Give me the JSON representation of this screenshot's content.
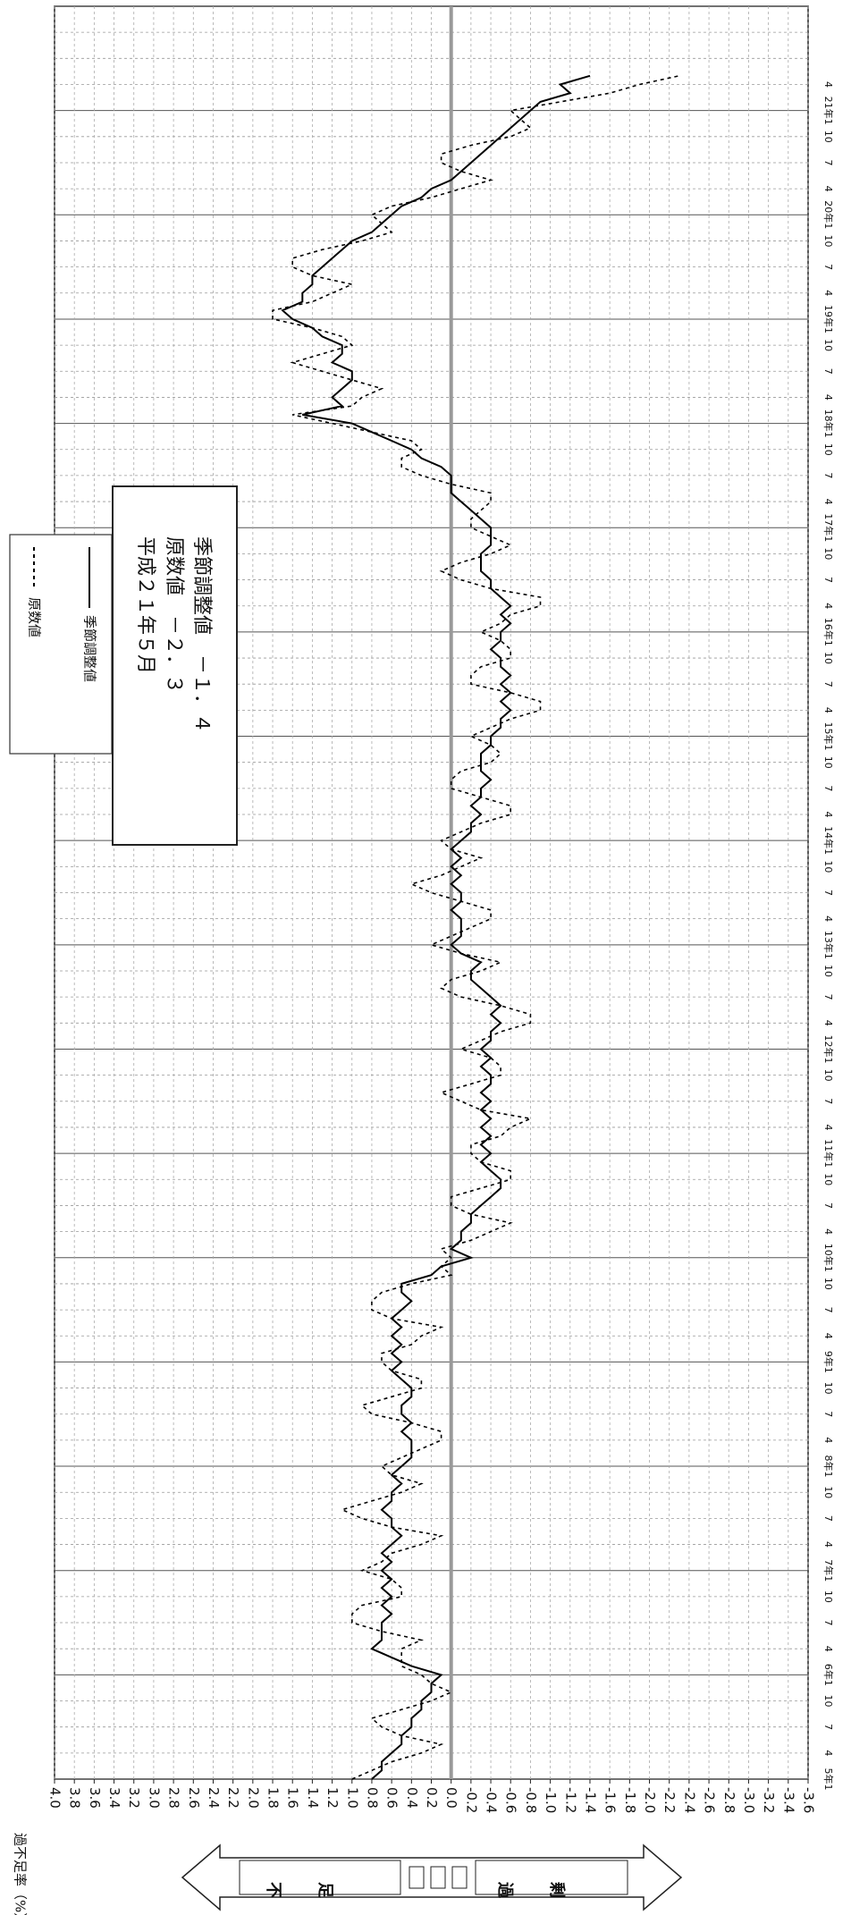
{
  "chart_data": {
    "type": "line",
    "ylabel": "過不足率（%）",
    "annotation": [
      "平成２１年５月",
      "原数値　－２．３",
      "季節調整値　－１．４"
    ],
    "arrow_labels": [
      "不足",
      "過剰"
    ],
    "ylim": [
      -3.6,
      4
    ],
    "yticks": [
      {
        "value": 4,
        "label": "4.0"
      },
      3.8,
      3.6,
      3.4,
      3.2,
      {
        "value": 3,
        "label": "3.0"
      },
      2.8,
      2.6,
      2.4,
      2.2,
      {
        "value": 2,
        "label": "2.0"
      },
      1.8,
      1.6,
      1.4,
      1.2,
      {
        "value": 1,
        "label": "1.0"
      },
      0.8,
      0.6,
      0.4,
      0.2,
      {
        "value": 0,
        "label": "0.0"
      },
      -0.2,
      -0.4,
      -0.6,
      -0.8,
      {
        "value": -1,
        "label": "-1.0"
      },
      -1.2,
      -1.4,
      -1.6,
      -1.8,
      {
        "value": -2,
        "label": "-2.0"
      },
      -2.2,
      -2.4,
      -2.6,
      -2.8,
      {
        "value": -3,
        "label": "-3.0"
      },
      -3.2,
      -3.4,
      -3.6
    ],
    "grid": true,
    "categories": [
      "5年1",
      null,
      null,
      "4",
      null,
      null,
      "7",
      null,
      null,
      "10",
      null,
      null,
      "6年1",
      null,
      null,
      "4",
      null,
      null,
      "7",
      null,
      null,
      "10",
      null,
      null,
      "7年1",
      null,
      null,
      "4",
      null,
      null,
      "7",
      null,
      null,
      "10",
      null,
      null,
      "8年1",
      null,
      null,
      "4",
      null,
      null,
      "7",
      null,
      null,
      "10",
      null,
      null,
      "9年1",
      null,
      null,
      "4",
      null,
      null,
      "7",
      null,
      null,
      "10",
      null,
      null,
      "10年1",
      null,
      null,
      "4",
      null,
      null,
      "7",
      null,
      null,
      "10",
      null,
      null,
      "11年1",
      null,
      null,
      "4",
      null,
      null,
      "7",
      null,
      null,
      "10",
      null,
      null,
      "12年1",
      null,
      null,
      "4",
      null,
      null,
      "7",
      null,
      null,
      "10",
      null,
      null,
      "13年1",
      null,
      null,
      "4",
      null,
      null,
      "7",
      null,
      null,
      "10",
      null,
      null,
      "14年1",
      null,
      null,
      "4",
      null,
      null,
      "7",
      null,
      null,
      "10",
      null,
      null,
      "15年1",
      null,
      null,
      "4",
      null,
      null,
      "7",
      null,
      null,
      "10",
      null,
      null,
      "16年1",
      null,
      null,
      "4",
      null,
      null,
      "7",
      null,
      null,
      "10",
      null,
      null,
      "17年1",
      null,
      null,
      "4",
      null,
      null,
      "7",
      null,
      null,
      "10",
      null,
      null,
      "18年1",
      null,
      null,
      "4",
      null,
      null,
      "7",
      null,
      null,
      "10",
      null,
      null,
      "19年1",
      null,
      null,
      "4",
      null,
      null,
      "7",
      null,
      null,
      "10",
      null,
      null,
      "20年1",
      null,
      null,
      "4",
      null,
      null,
      "7",
      null,
      null,
      "10",
      null,
      null,
      "21年1",
      null,
      null,
      "4",
      null
    ],
    "series": [
      {
        "name": "原数値",
        "color": "#000000",
        "linestyle": "dotted",
        "values": [
          1.0,
          0.8,
          0.6,
          0.3,
          0.1,
          0.5,
          0.7,
          0.8,
          0.5,
          0.2,
          0.0,
          0.2,
          0.3,
          0.5,
          0.5,
          0.5,
          0.3,
          0.7,
          1.0,
          1.0,
          0.9,
          0.5,
          0.5,
          0.6,
          0.9,
          0.7,
          0.6,
          0.3,
          0.1,
          0.6,
          0.9,
          1.1,
          0.8,
          0.5,
          0.3,
          0.6,
          0.7,
          0.5,
          0.3,
          0.1,
          0.1,
          0.4,
          0.8,
          0.9,
          0.6,
          0.3,
          0.3,
          0.6,
          0.7,
          0.7,
          0.4,
          0.3,
          0.1,
          0.6,
          0.8,
          0.8,
          0.7,
          0.4,
          0.0,
          0.1,
          0.0,
          0.1,
          -0.2,
          -0.4,
          -0.6,
          -0.2,
          0.0,
          0.0,
          -0.3,
          -0.6,
          -0.6,
          -0.3,
          -0.2,
          -0.2,
          -0.5,
          -0.6,
          -0.8,
          -0.3,
          -0.1,
          0.1,
          -0.2,
          -0.5,
          -0.5,
          -0.4,
          -0.1,
          -0.3,
          -0.5,
          -0.8,
          -0.8,
          -0.5,
          -0.1,
          0.1,
          0.0,
          -0.3,
          -0.5,
          -0.1,
          0.2,
          0.0,
          -0.2,
          -0.4,
          -0.4,
          -0.1,
          0.2,
          0.4,
          0.1,
          -0.1,
          -0.3,
          0.0,
          0.1,
          -0.1,
          -0.3,
          -0.6,
          -0.6,
          -0.3,
          0.0,
          0.0,
          -0.1,
          -0.4,
          -0.5,
          -0.4,
          -0.2,
          -0.4,
          -0.6,
          -0.9,
          -0.9,
          -0.6,
          -0.2,
          -0.2,
          -0.3,
          -0.6,
          -0.6,
          -0.5,
          -0.3,
          -0.5,
          -0.6,
          -0.9,
          -0.9,
          -0.4,
          -0.1,
          0.1,
          -0.1,
          -0.4,
          -0.6,
          -0.4,
          -0.2,
          -0.2,
          -0.3,
          -0.4,
          -0.4,
          0.0,
          0.3,
          0.5,
          0.5,
          0.3,
          0.4,
          0.8,
          1.2,
          1.6,
          1.0,
          0.9,
          0.7,
          1.0,
          1.3,
          1.6,
          1.3,
          1.0,
          1.1,
          1.4,
          1.8,
          1.8,
          1.4,
          1.2,
          1.0,
          1.4,
          1.6,
          1.6,
          1.3,
          0.9,
          0.6,
          0.7,
          0.8,
          0.6,
          0.2,
          -0.1,
          -0.4,
          -0.1,
          0.1,
          0.1,
          -0.2,
          -0.6,
          -0.8,
          -0.7,
          -0.6,
          -1.1,
          -1.6,
          -1.9,
          -2.3
        ]
      },
      {
        "name": "季節調整値",
        "color": "#000000",
        "linestyle": "solid",
        "values": [
          0.8,
          0.7,
          0.7,
          0.6,
          0.5,
          0.5,
          0.4,
          0.4,
          0.3,
          0.3,
          0.2,
          0.2,
          0.1,
          0.4,
          0.6,
          0.8,
          0.7,
          0.7,
          0.7,
          0.6,
          0.7,
          0.6,
          0.7,
          0.6,
          0.7,
          0.6,
          0.7,
          0.6,
          0.5,
          0.6,
          0.6,
          0.7,
          0.6,
          0.6,
          0.5,
          0.6,
          0.5,
          0.4,
          0.4,
          0.4,
          0.5,
          0.4,
          0.5,
          0.5,
          0.4,
          0.4,
          0.5,
          0.6,
          0.5,
          0.6,
          0.5,
          0.6,
          0.5,
          0.6,
          0.5,
          0.4,
          0.5,
          0.5,
          0.2,
          0.1,
          -0.2,
          0.0,
          -0.1,
          -0.1,
          -0.2,
          -0.2,
          -0.3,
          -0.4,
          -0.5,
          -0.5,
          -0.4,
          -0.3,
          -0.4,
          -0.3,
          -0.4,
          -0.3,
          -0.4,
          -0.3,
          -0.4,
          -0.3,
          -0.4,
          -0.4,
          -0.3,
          -0.4,
          -0.3,
          -0.4,
          -0.4,
          -0.5,
          -0.4,
          -0.5,
          -0.4,
          -0.3,
          -0.2,
          -0.2,
          -0.3,
          -0.1,
          0.0,
          -0.1,
          -0.1,
          -0.1,
          0.0,
          -0.1,
          -0.1,
          0.0,
          -0.1,
          0.0,
          -0.1,
          0.0,
          -0.1,
          -0.2,
          -0.2,
          -0.3,
          -0.2,
          -0.3,
          -0.3,
          -0.4,
          -0.3,
          -0.3,
          -0.3,
          -0.4,
          -0.4,
          -0.5,
          -0.5,
          -0.6,
          -0.5,
          -0.6,
          -0.5,
          -0.6,
          -0.5,
          -0.5,
          -0.4,
          -0.5,
          -0.5,
          -0.6,
          -0.5,
          -0.6,
          -0.5,
          -0.4,
          -0.4,
          -0.3,
          -0.3,
          -0.3,
          -0.4,
          -0.4,
          -0.4,
          -0.3,
          -0.2,
          -0.1,
          0.0,
          0.0,
          0.0,
          0.1,
          0.3,
          0.4,
          0.6,
          0.8,
          1.0,
          1.5,
          1.1,
          1.2,
          1.1,
          1.0,
          1.0,
          1.2,
          1.1,
          1.1,
          1.3,
          1.4,
          1.6,
          1.7,
          1.5,
          1.5,
          1.4,
          1.4,
          1.3,
          1.2,
          1.1,
          1.0,
          0.8,
          0.7,
          0.6,
          0.5,
          0.3,
          0.2,
          0.0,
          -0.1,
          -0.2,
          -0.3,
          -0.4,
          -0.5,
          -0.6,
          -0.7,
          -0.8,
          -0.9,
          -1.2,
          -1.1,
          -1.4
        ]
      }
    ]
  }
}
